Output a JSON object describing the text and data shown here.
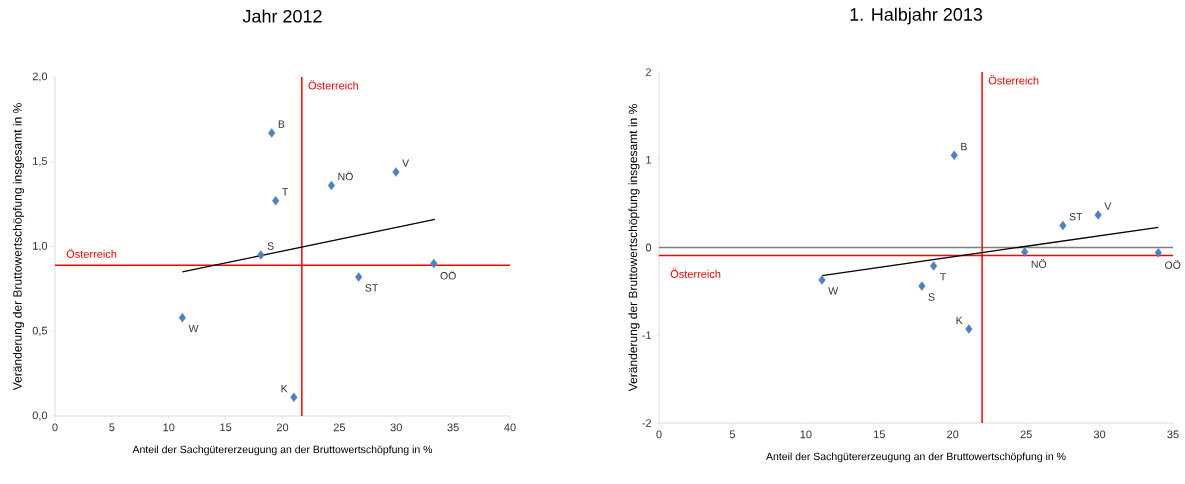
{
  "chart_data": [
    {
      "type": "scatter",
      "title": "Jahr 2012",
      "xlabel": "Anteil der Sachgütererzeugung an der Bruttowertschöpfung in %",
      "ylabel": "Veränderung der Bruttowertschöpfung insgesamt in %",
      "xlim": [
        0,
        40
      ],
      "ylim": [
        0,
        2
      ],
      "xticks": [
        0,
        5,
        10,
        15,
        20,
        25,
        30,
        35,
        40
      ],
      "yticks": [
        {
          "value": 0,
          "label": "0,0"
        },
        {
          "value": 0.5,
          "label": "0,5"
        },
        {
          "value": 1,
          "label": "1,0"
        },
        {
          "value": 1.5,
          "label": "1,5"
        },
        {
          "value": 2,
          "label": "2,0"
        }
      ],
      "grid": false,
      "series": [
        {
          "marker": "diamond",
          "color": "#4f81bd",
          "x": [
            19.05,
            24.3,
            29.97,
            19.4,
            18.1,
            33.3,
            26.7,
            11.2,
            21.0
          ],
          "values": [
            1.67,
            1.36,
            1.44,
            1.27,
            0.95,
            0.9,
            0.82,
            0.58,
            0.11
          ]
        },
        {
          "type": "line",
          "marker": "none",
          "color": "#000000",
          "x": [
            11.2,
            33.4
          ],
          "values": [
            0.85,
            1.16
          ]
        }
      ],
      "ref_lines": [
        {
          "axis": "x",
          "value": 21.7,
          "label": "Österreich",
          "color": "#ff0000"
        },
        {
          "axis": "y",
          "value": 0.89,
          "label": "Österreich",
          "color": "#ff0000"
        }
      ],
      "annotations": [
        {
          "text": "B",
          "x": 19.05,
          "y": 1.67
        },
        {
          "text": "NÖ",
          "x": 24.3,
          "y": 1.36
        },
        {
          "text": "V",
          "x": 29.97,
          "y": 1.44
        },
        {
          "text": "T",
          "x": 19.4,
          "y": 1.27
        },
        {
          "text": "S",
          "x": 18.1,
          "y": 0.95
        },
        {
          "text": "OÖ",
          "x": 33.3,
          "y": 0.9
        },
        {
          "text": "ST",
          "x": 26.7,
          "y": 0.82
        },
        {
          "text": "W",
          "x": 11.2,
          "y": 0.58
        },
        {
          "text": "K",
          "x": 21.0,
          "y": 0.11
        }
      ]
    },
    {
      "type": "scatter",
      "title": "1. Halbjahr 2013",
      "xlabel": "Anteil der Sachgütererzeugung an der Bruttowertschöpfung in %",
      "ylabel": "Veränderung der Bruttowertschöpfung insgesamt in %",
      "xlim": [
        0,
        35
      ],
      "ylim": [
        -2,
        2
      ],
      "xticks": [
        0,
        5,
        10,
        15,
        20,
        25,
        30,
        35
      ],
      "yticks": [
        -2,
        -1,
        0,
        1,
        2
      ],
      "grid": false,
      "series": [
        {
          "marker": "diamond",
          "color": "#4f81bd",
          "x": [
            20.1,
            29.9,
            27.5,
            24.9,
            34.0,
            18.7,
            17.9,
            11.1,
            21.1
          ],
          "values": [
            1.05,
            0.37,
            0.25,
            -0.05,
            -0.06,
            -0.21,
            -0.44,
            -0.37,
            -0.93
          ]
        },
        {
          "type": "line",
          "marker": "none",
          "color": "#000000",
          "x": [
            11.1,
            34.0
          ],
          "values": [
            -0.32,
            0.23
          ]
        }
      ],
      "ref_lines": [
        {
          "axis": "y",
          "value": 0,
          "color": "#808080"
        },
        {
          "axis": "x",
          "value": 22.0,
          "label": "Österreich",
          "color": "#ff0000"
        },
        {
          "axis": "y",
          "value": -0.09,
          "label": "Österreich",
          "color": "#ff0000"
        }
      ],
      "annotations": [
        {
          "text": "B",
          "x": 20.1,
          "y": 1.05
        },
        {
          "text": "V",
          "x": 29.9,
          "y": 0.37
        },
        {
          "text": "ST",
          "x": 27.5,
          "y": 0.25
        },
        {
          "text": "NÖ",
          "x": 24.9,
          "y": -0.05
        },
        {
          "text": "OÖ",
          "x": 34.0,
          "y": -0.06
        },
        {
          "text": "T",
          "x": 18.7,
          "y": -0.21
        },
        {
          "text": "S",
          "x": 17.9,
          "y": -0.44
        },
        {
          "text": "W",
          "x": 11.1,
          "y": -0.37
        },
        {
          "text": "K",
          "x": 21.1,
          "y": -0.93
        }
      ]
    }
  ]
}
